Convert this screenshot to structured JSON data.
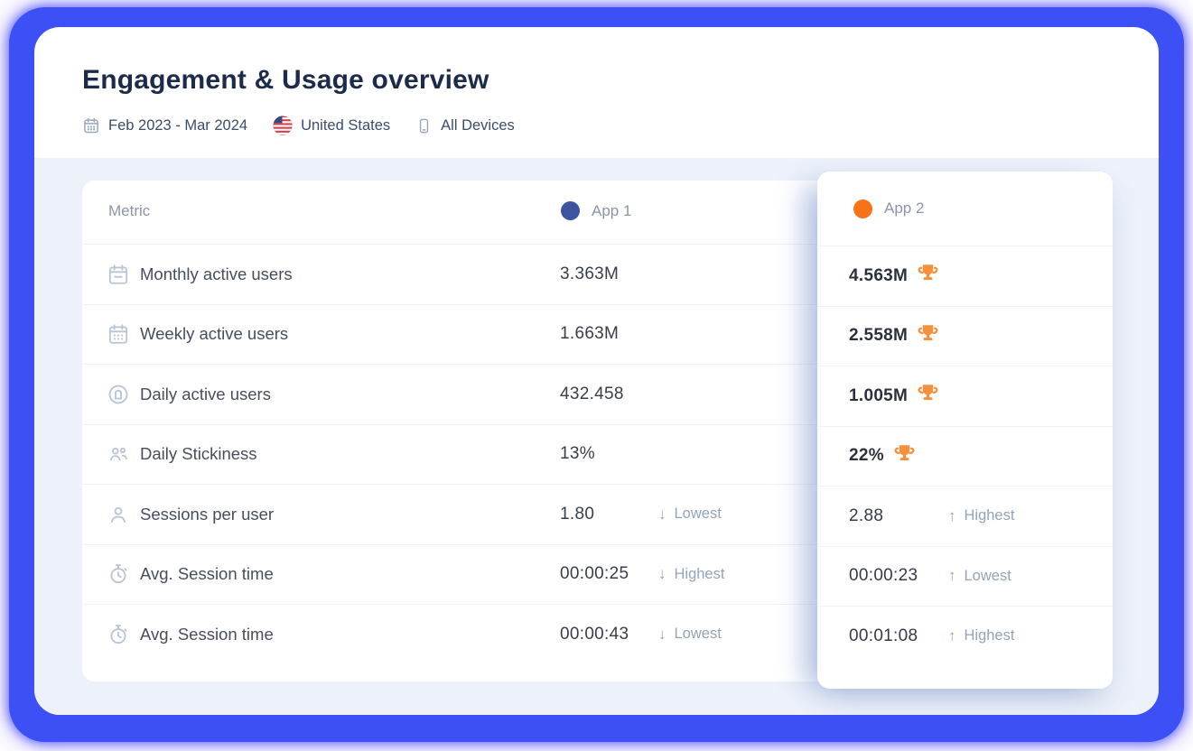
{
  "header": {
    "title": "Engagement & Usage overview",
    "date_range": "Feb 2023 - Mar 2024",
    "country": "United States",
    "devices": "All Devices"
  },
  "table": {
    "metric_header": "Metric",
    "apps": [
      {
        "name": "App 1",
        "color": "#3E53A0"
      },
      {
        "name": "App 2",
        "color": "#F97316"
      }
    ],
    "rows": [
      {
        "metric": "Monthly active users",
        "icon": "calendar-month-icon",
        "app1": {
          "value": "3.363M"
        },
        "app2": {
          "value": "4.563M",
          "trophy": true
        }
      },
      {
        "metric": "Weekly active users",
        "icon": "calendar-week-icon",
        "app1": {
          "value": "1.663M"
        },
        "app2": {
          "value": "2.558M",
          "trophy": true
        }
      },
      {
        "metric": "Daily active users",
        "icon": "daily-active-icon",
        "app1": {
          "value": "432.458"
        },
        "app2": {
          "value": "1.005M",
          "trophy": true
        }
      },
      {
        "metric": "Daily Stickiness",
        "icon": "users-icon",
        "app1": {
          "value": "13%"
        },
        "app2": {
          "value": "22%",
          "trophy": true
        }
      },
      {
        "metric": "Sessions per user",
        "icon": "user-icon",
        "app1": {
          "value": "1.80",
          "badge": {
            "direction": "down",
            "label": "Lowest"
          }
        },
        "app2": {
          "value": "2.88",
          "badge": {
            "direction": "up",
            "label": "Highest"
          }
        }
      },
      {
        "metric": "Avg. Session time",
        "icon": "stopwatch-icon",
        "app1": {
          "value": "00:00:25",
          "badge": {
            "direction": "down",
            "label": "Highest"
          }
        },
        "app2": {
          "value": "00:00:23",
          "badge": {
            "direction": "up",
            "label": "Lowest"
          }
        }
      },
      {
        "metric": "Avg. Session time",
        "icon": "stopwatch-icon",
        "app1": {
          "value": "00:00:43",
          "badge": {
            "direction": "down",
            "label": "Lowest"
          }
        },
        "app2": {
          "value": "00:01:08",
          "badge": {
            "direction": "up",
            "label": "Highest"
          }
        }
      }
    ]
  },
  "colors": {
    "frame_blue": "#3C50F6",
    "panel_background": "#ECF1FA",
    "app1_dot": "#3E53A0",
    "app2_dot": "#F97316",
    "trophy_orange": "#F5913E",
    "badge_gray": "#93A3B9"
  }
}
